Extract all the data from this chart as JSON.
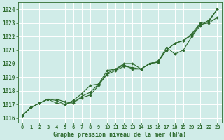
{
  "bg_color": "#d0ece8",
  "grid_color": "#b0d8d0",
  "line_color": "#2d6a2d",
  "marker_color": "#2d6a2d",
  "xlabel": "Graphe pression niveau de la mer (hPa)",
  "ylim": [
    1015.7,
    1024.5
  ],
  "xlim": [
    -0.5,
    23.5
  ],
  "yticks": [
    1016,
    1017,
    1018,
    1019,
    1020,
    1021,
    1022,
    1023,
    1024
  ],
  "xticks": [
    0,
    1,
    2,
    3,
    4,
    5,
    6,
    7,
    8,
    9,
    10,
    11,
    12,
    13,
    14,
    15,
    16,
    17,
    18,
    19,
    20,
    21,
    22,
    23
  ],
  "series1": [
    1016.2,
    1016.8,
    1017.1,
    1017.4,
    1017.1,
    1017.0,
    1017.2,
    1017.5,
    1017.7,
    1018.4,
    1019.3,
    1019.6,
    1019.9,
    1019.6,
    1019.6,
    1020.0,
    1020.1,
    1021.0,
    1021.5,
    1021.7,
    1022.2,
    1023.0,
    1023.1,
    1024.0
  ],
  "series2": [
    1016.2,
    1016.8,
    1017.1,
    1017.4,
    1017.4,
    1017.2,
    1017.1,
    1017.6,
    1017.9,
    1018.5,
    1019.5,
    1019.6,
    1020.0,
    1020.0,
    1019.6,
    1020.0,
    1020.1,
    1021.2,
    1020.7,
    1021.0,
    1022.0,
    1022.8,
    1023.2,
    1024.0
  ],
  "series3": [
    1016.2,
    1016.8,
    1017.1,
    1017.4,
    1017.3,
    1017.0,
    1017.3,
    1017.8,
    1018.4,
    1018.5,
    1019.2,
    1019.5,
    1019.8,
    1019.7,
    1019.6,
    1020.0,
    1020.2,
    1021.0,
    1021.5,
    1021.7,
    1022.1,
    1022.9,
    1023.0,
    1023.4
  ],
  "xlabel_fontsize": 6.0,
  "tick_fontsize": 5.5,
  "line_width": 0.8
}
